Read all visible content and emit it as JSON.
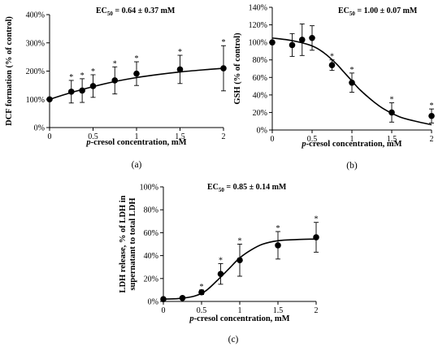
{
  "chart_data": [
    {
      "type": "scatter",
      "panel_label": "(a)",
      "annotation": {
        "prefix": "EC",
        "sub": "50",
        "suffix": " = 0.64 ± 0.37 mM"
      },
      "xlabel_italic": "p",
      "xlabel": "-cresol concentration, mM",
      "ylabel": "DCF formation (% of control)",
      "xlim": [
        0,
        2
      ],
      "ylim": [
        0,
        400
      ],
      "xticks": [
        0,
        0.5,
        1,
        1.5,
        2
      ],
      "xtick_labels": [
        "0",
        "0.5",
        "1",
        "1.5",
        "2"
      ],
      "yticks": [
        0,
        100,
        200,
        300,
        400
      ],
      "ytick_labels": [
        "0%",
        "100%",
        "200%",
        "300%",
        "400%"
      ],
      "x": [
        0,
        0.25,
        0.375,
        0.5,
        0.75,
        1,
        1.5,
        2
      ],
      "y": [
        100,
        127,
        131,
        147,
        167,
        191,
        206,
        210
      ],
      "err": [
        0,
        40,
        42,
        40,
        48,
        42,
        50,
        80
      ],
      "significant": [
        false,
        true,
        true,
        true,
        true,
        true,
        true,
        true
      ],
      "sig_marker": "*",
      "fit": [
        [
          0,
          100
        ],
        [
          0.25,
          124
        ],
        [
          0.5,
          145
        ],
        [
          0.75,
          163
        ],
        [
          1,
          177
        ],
        [
          1.25,
          188
        ],
        [
          1.5,
          197
        ],
        [
          1.75,
          204
        ],
        [
          2,
          210
        ]
      ]
    },
    {
      "type": "scatter",
      "panel_label": "(b)",
      "annotation": {
        "prefix": "EC",
        "sub": "50",
        "suffix": " = 1.00 ± 0.07 mM"
      },
      "xlabel_italic": "p",
      "xlabel": "-cresol concentration, mM",
      "ylabel": "GSH (% of control)",
      "xlim": [
        0,
        2
      ],
      "ylim": [
        0,
        140
      ],
      "xticks": [
        0,
        0.5,
        1,
        1.5,
        2
      ],
      "xtick_labels": [
        "0",
        "0.5",
        "1",
        "1.5",
        "2"
      ],
      "yticks": [
        0,
        20,
        40,
        60,
        80,
        100,
        120,
        140
      ],
      "ytick_labels": [
        "0%",
        "20%",
        "40%",
        "60%",
        "80%",
        "100%",
        "120%",
        "140%"
      ],
      "x": [
        0,
        0.25,
        0.375,
        0.5,
        0.75,
        1,
        1.5,
        2
      ],
      "y": [
        100,
        97,
        103,
        105,
        74,
        54,
        20,
        16
      ],
      "err": [
        0,
        13,
        18,
        14,
        6,
        11,
        11,
        8
      ],
      "significant": [
        false,
        false,
        false,
        false,
        true,
        true,
        true,
        true
      ],
      "sig_marker": "*",
      "fit": [
        [
          0,
          105
        ],
        [
          0.25,
          102
        ],
        [
          0.5,
          96
        ],
        [
          0.65,
          88
        ],
        [
          0.8,
          76
        ],
        [
          0.9,
          66
        ],
        [
          1,
          56
        ],
        [
          1.1,
          46
        ],
        [
          1.25,
          34
        ],
        [
          1.4,
          24
        ],
        [
          1.6,
          15
        ],
        [
          1.8,
          10
        ],
        [
          2,
          6
        ]
      ]
    },
    {
      "type": "scatter",
      "panel_label": "(c)",
      "annotation": {
        "prefix": "EC",
        "sub": "50",
        "suffix": " = 0.85 ± 0.14 mM"
      },
      "xlabel_italic": "p",
      "xlabel": "-cresol concentration, mM",
      "ylabel_lines": [
        "LDH release, % of LDH in",
        "supernatant to total LDH"
      ],
      "xlim": [
        0,
        2
      ],
      "ylim": [
        0,
        100
      ],
      "xticks": [
        0,
        0.5,
        1,
        1.5,
        2
      ],
      "xtick_labels": [
        "0",
        "0.5",
        "1",
        "1.5",
        "2"
      ],
      "yticks": [
        0,
        20,
        40,
        60,
        80,
        100
      ],
      "ytick_labels": [
        "0%",
        "20%",
        "40%",
        "60%",
        "80%",
        "100%"
      ],
      "x": [
        0,
        0.25,
        0.5,
        0.75,
        1,
        1.5,
        2
      ],
      "y": [
        2,
        3,
        8,
        24,
        36,
        49,
        56
      ],
      "err": [
        0,
        0,
        2,
        9,
        14,
        12,
        13
      ],
      "significant": [
        false,
        false,
        true,
        true,
        true,
        true,
        true
      ],
      "sig_marker": "*",
      "fit": [
        [
          0,
          2
        ],
        [
          0.2,
          2.5
        ],
        [
          0.4,
          4.5
        ],
        [
          0.55,
          9
        ],
        [
          0.7,
          18
        ],
        [
          0.85,
          28
        ],
        [
          1,
          38
        ],
        [
          1.15,
          45
        ],
        [
          1.3,
          50
        ],
        [
          1.5,
          53
        ],
        [
          1.75,
          54
        ],
        [
          2,
          54.5
        ]
      ]
    }
  ]
}
